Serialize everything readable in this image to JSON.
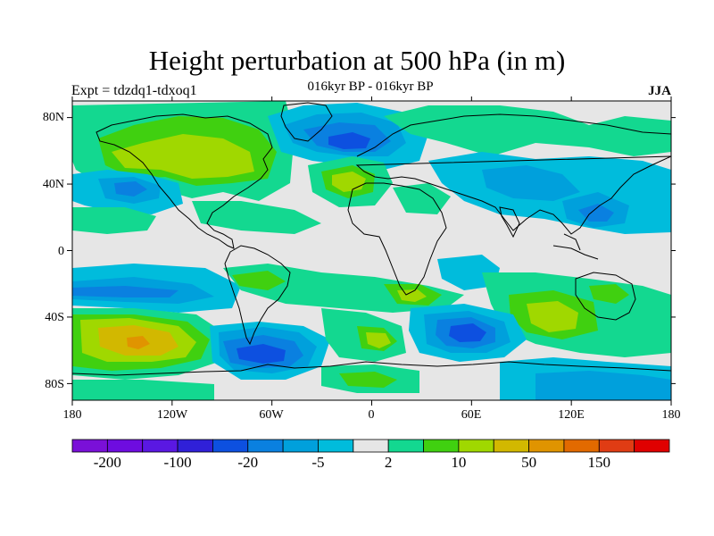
{
  "map": {
    "title": "Height perturbation at 500 hPa (in m)",
    "left_label": "Expt = tdzdq1-tdxoq1",
    "center_label": "016kyr BP - 016kyr BP",
    "right_label": "JJA",
    "lon_ticks": [
      "180",
      "120W",
      "60W",
      "0",
      "60E",
      "120E",
      "180"
    ],
    "lat_ticks": [
      "80N",
      "40N",
      "0",
      "40S",
      "80S"
    ],
    "lon_range": [
      -180,
      180
    ],
    "lat_range": [
      -90,
      90
    ],
    "projection": "cylindrical-equidistant"
  },
  "colorbar": {
    "colors": [
      "#7a10d8",
      "#6e0ce0",
      "#5a18e2",
      "#3020d8",
      "#0d50e0",
      "#0a80e0",
      "#00a0dc",
      "#00bcdc",
      "#e6e6e6",
      "#13d890",
      "#40d010",
      "#a0d800",
      "#d2b800",
      "#e09400",
      "#e26a00",
      "#e03c14",
      "#e00000"
    ],
    "tick_labels": [
      "-200",
      "-100",
      "-20",
      "-5",
      "2",
      "10",
      "50",
      "150"
    ],
    "label_positions": [
      1,
      3,
      5,
      7,
      9,
      11,
      13,
      15
    ]
  },
  "chart_data": {
    "type": "heatmap",
    "title": "Height perturbation at 500 hPa (in m)",
    "variable": "500 hPa height perturbation",
    "units": "m",
    "season": "JJA",
    "xlabel": "",
    "ylabel": "",
    "xlim": [
      -180,
      180
    ],
    "ylim": [
      -90,
      90
    ],
    "background_level": "near zero (light gray)",
    "features": [
      {
        "region": "Southeast Pacific",
        "lon": -135,
        "lat": -57,
        "approx_value": 50,
        "sign": "positive"
      },
      {
        "region": "Southern Ocean south of South America",
        "lon": -65,
        "lat": -68,
        "approx_value": -20,
        "sign": "negative"
      },
      {
        "region": "Southern Indian Ocean",
        "lon": 60,
        "lat": -50,
        "approx_value": -20,
        "sign": "negative"
      },
      {
        "region": "Southern Indian / Australian sector",
        "lon": 105,
        "lat": -40,
        "approx_value": 10,
        "sign": "positive"
      },
      {
        "region": "South Atlantic",
        "lon": 5,
        "lat": -52,
        "approx_value": 10,
        "sign": "positive"
      },
      {
        "region": "North Atlantic / Greenland",
        "lon": -10,
        "lat": 60,
        "approx_value": -20,
        "sign": "negative"
      },
      {
        "region": "North America",
        "lon": -110,
        "lat": 58,
        "approx_value": 10,
        "sign": "positive"
      },
      {
        "region": "North Pacific",
        "lon": -150,
        "lat": 38,
        "approx_value": -5,
        "sign": "negative"
      },
      {
        "region": "Central Asia",
        "lon": 80,
        "lat": 42,
        "approx_value": -5,
        "sign": "negative"
      },
      {
        "region": "Southeast Asia / Western Pacific",
        "lon": 120,
        "lat": 20,
        "approx_value": -5,
        "sign": "negative"
      },
      {
        "region": "East Siberia / Arctic",
        "lon": 140,
        "lat": 72,
        "approx_value": 5,
        "sign": "positive"
      },
      {
        "region": "Eastern Pacific subtropics (S)",
        "lon": -110,
        "lat": -20,
        "approx_value": -5,
        "sign": "negative"
      }
    ]
  }
}
